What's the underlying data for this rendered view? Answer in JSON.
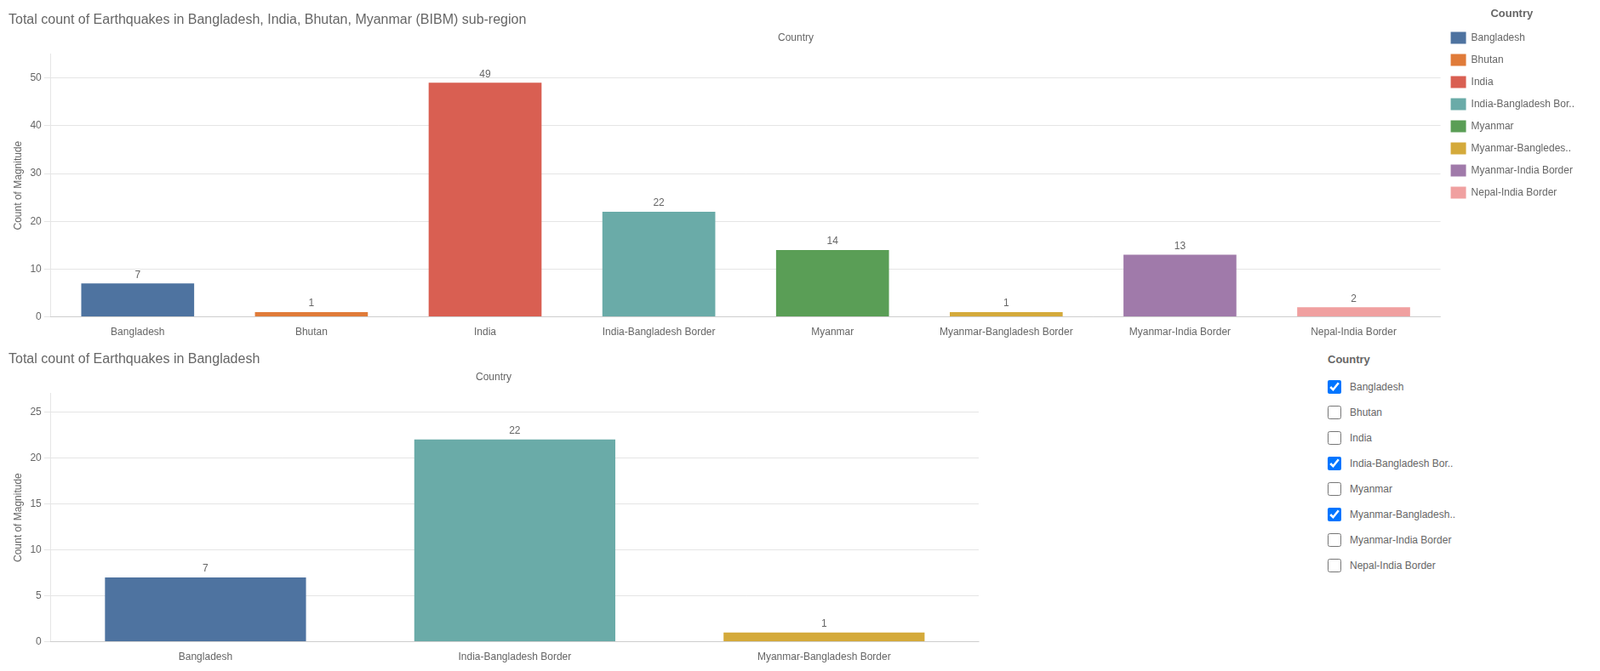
{
  "chart_data": [
    {
      "type": "bar",
      "title": "Total count of Earthquakes in Bangladesh, India, Bhutan, Myanmar (BIBM) sub-region",
      "subtitle": "Country",
      "ylabel": "Count of Magnitude",
      "categories": [
        "Bangladesh",
        "Bhutan",
        "India",
        "India-Bangladesh Border",
        "Myanmar",
        "Myanmar-Bangladesh Border",
        "Myanmar-India Border",
        "Nepal-India Border"
      ],
      "series": [
        {
          "name": "Bangladesh",
          "color": "#4e73a0",
          "values": [
            7,
            null,
            null,
            null,
            null,
            null,
            null,
            null
          ]
        },
        {
          "name": "Bhutan",
          "color": "#e07b39",
          "values": [
            null,
            1,
            null,
            null,
            null,
            null,
            null,
            null
          ]
        },
        {
          "name": "India",
          "color": "#d95f52",
          "values": [
            null,
            null,
            49,
            null,
            null,
            null,
            null,
            null
          ]
        },
        {
          "name": "India-Bangladesh Bor..",
          "color": "#6aaba8",
          "values": [
            null,
            null,
            null,
            22,
            null,
            null,
            null,
            null
          ]
        },
        {
          "name": "Myanmar",
          "color": "#5a9e56",
          "values": [
            null,
            null,
            null,
            null,
            14,
            null,
            null,
            null
          ]
        },
        {
          "name": "Myanmar-Bangledes..",
          "color": "#d4aa3b",
          "values": [
            null,
            null,
            null,
            null,
            null,
            1,
            null,
            null
          ]
        },
        {
          "name": "Myanmar-India Border",
          "color": "#a07aaa",
          "values": [
            null,
            null,
            null,
            null,
            null,
            null,
            13,
            null
          ]
        },
        {
          "name": "Nepal-India Border",
          "color": "#f0a0a0",
          "values": [
            null,
            null,
            null,
            null,
            null,
            null,
            null,
            2
          ]
        }
      ],
      "stacked": true,
      "ylim": [
        0,
        55
      ],
      "yticks": [
        0,
        10,
        20,
        30,
        40,
        50
      ],
      "grid": true,
      "data_labels": true,
      "legend": "right",
      "legend_title": "Country"
    },
    {
      "type": "bar",
      "title": "Total count of Earthquakes in Bangladesh",
      "subtitle": "Country",
      "ylabel": "Count of Magnitude",
      "categories": [
        "Bangladesh",
        "India-Bangladesh Border",
        "Myanmar-Bangladesh Border"
      ],
      "values": [
        7,
        22,
        1
      ],
      "colors": [
        "#4e73a0",
        "#6aaba8",
        "#d4aa3b"
      ],
      "ylim": [
        0,
        27
      ],
      "yticks": [
        0,
        5,
        10,
        15,
        20,
        25
      ],
      "grid": true,
      "data_labels": true,
      "filter": {
        "title": "Country",
        "labels": [
          "Bangladesh",
          "Bhutan",
          "India",
          "India-Bangladesh Bor..",
          "Myanmar",
          "Myanmar-Bangladesh..",
          "Myanmar-India Border",
          "Nepal-India Border"
        ],
        "checked": [
          true,
          false,
          false,
          true,
          false,
          true,
          false,
          false
        ]
      }
    }
  ]
}
